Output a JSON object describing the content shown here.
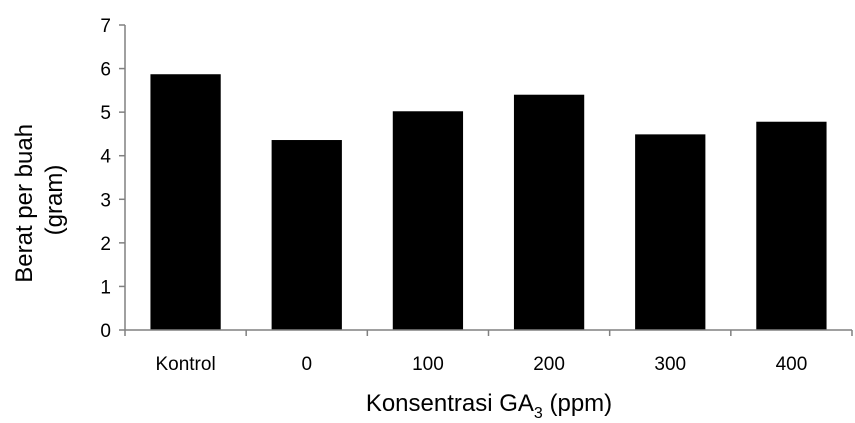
{
  "chart_data": {
    "type": "bar",
    "title": "",
    "categories": [
      "Kontrol",
      "0",
      "100",
      "200",
      "300",
      "400"
    ],
    "values": [
      5.87,
      4.36,
      5.02,
      5.4,
      4.49,
      4.78
    ],
    "ylabel_line1": "Berat per buah",
    "ylabel_line2": "(gram)",
    "xlabel_prefix": "Konsentrasi GA",
    "xlabel_subscript": "3",
    "xlabel_suffix": " (ppm)",
    "ylim": [
      0,
      7
    ],
    "yticks": [
      "0",
      "1",
      "2",
      "3",
      "4",
      "5",
      "6",
      "7"
    ],
    "grid": false,
    "legend": "none",
    "bar_color": "#000000",
    "axis_color": "#808080"
  }
}
